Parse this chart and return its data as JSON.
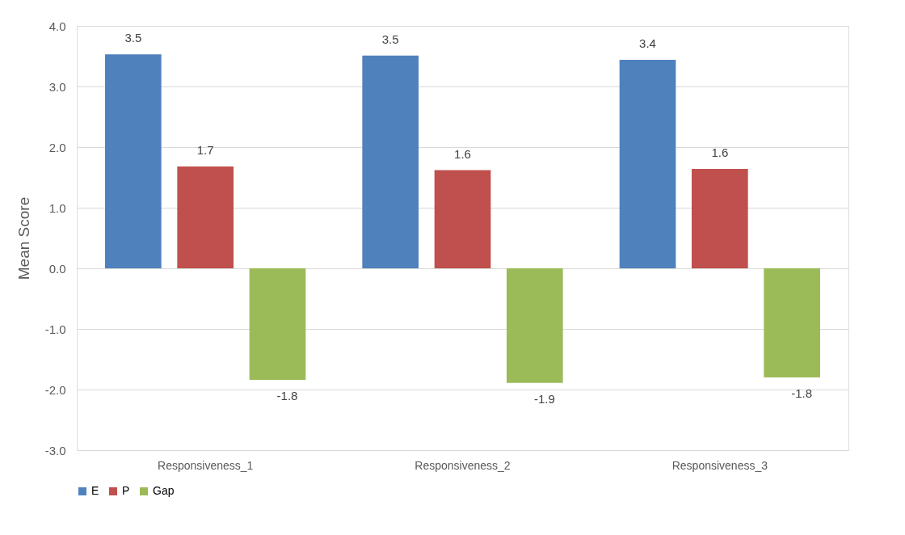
{
  "chart_data": {
    "type": "bar",
    "ylabel": "Mean Score",
    "categories": [
      "Responsiveness_1",
      "Responsiveness_2",
      "Responsiveness_3"
    ],
    "series": [
      {
        "name": "E",
        "color": "#4f81bd",
        "values": [
          3.53,
          3.51,
          3.44
        ],
        "value_labels": [
          "3.5",
          "3.5",
          "3.4"
        ]
      },
      {
        "name": "P",
        "color": "#c0504d",
        "values": [
          1.68,
          1.62,
          1.64
        ],
        "value_labels": [
          "1.7",
          "1.6",
          "1.6"
        ]
      },
      {
        "name": "Gap",
        "color": "#9bbb59",
        "values": [
          -1.84,
          -1.89,
          -1.8
        ],
        "value_labels": [
          "-1.8",
          "-1.9",
          "-1.8"
        ]
      }
    ],
    "ylim": [
      -3.0,
      4.0
    ],
    "yticks": [
      {
        "value": -3,
        "label": "-3.0"
      },
      {
        "value": -2,
        "label": "-2.0"
      },
      {
        "value": -1,
        "label": "-1.0"
      },
      {
        "value": 0,
        "label": "0.0"
      },
      {
        "value": 1,
        "label": "1.0"
      },
      {
        "value": 2,
        "label": "2.0"
      },
      {
        "value": 3,
        "label": "3.0"
      },
      {
        "value": 4,
        "label": "4.0"
      }
    ],
    "grid": "y",
    "legend": "bottom"
  }
}
